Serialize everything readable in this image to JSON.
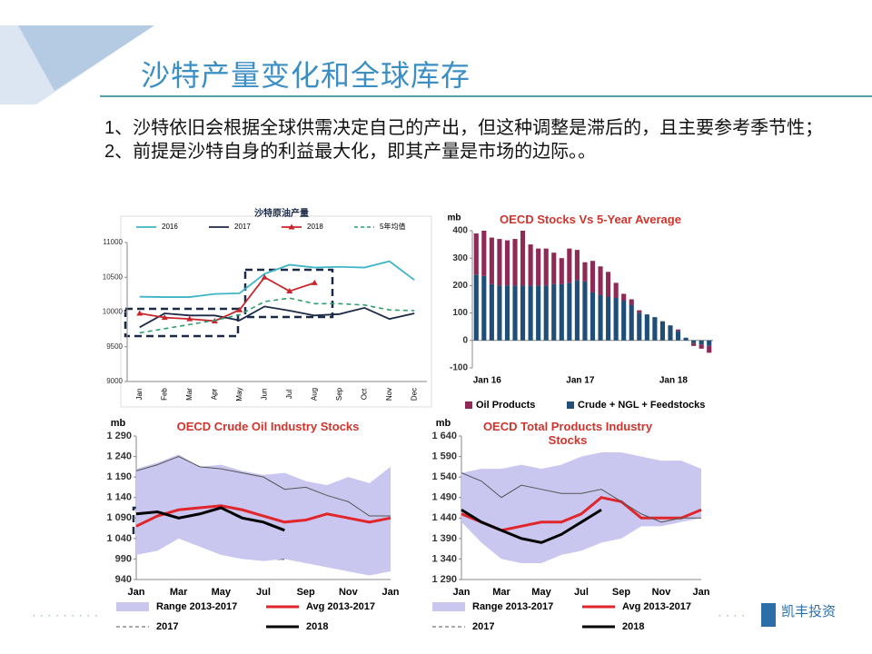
{
  "title": "沙特产量变化和全球库存",
  "bullets": [
    "1、沙特依旧会根据全球供需决定自己的产出，但这种调整是滞后的，且主要参考季节性；",
    "2、前提是沙特自身的利益最大化，即其产量是市场的边际。。"
  ],
  "logo": "凯丰投资",
  "chart_data": [
    {
      "type": "line",
      "title": "沙特原油产量",
      "categories": [
        "Jan",
        "Feb",
        "Mar",
        "Apr",
        "May",
        "Jun",
        "Jul",
        "Aug",
        "Sep",
        "Oct",
        "Nov",
        "Dec"
      ],
      "series": [
        {
          "name": "2016",
          "color": "#3fb5c8",
          "line_style": "solid",
          "values": [
            10220,
            10215,
            10215,
            10260,
            10270,
            10550,
            10680,
            10640,
            10650,
            10640,
            10730,
            10460
          ]
        },
        {
          "name": "2017",
          "color": "#1c2a48",
          "line_style": "solid",
          "values": [
            9780,
            9980,
            9950,
            9950,
            9880,
            10080,
            10020,
            9950,
            9970,
            10060,
            9900,
            9980
          ]
        },
        {
          "name": "2018",
          "color": "#c8262c",
          "line_style": "solid",
          "marker": "triangle",
          "values": [
            9980,
            9920,
            9900,
            9870,
            10030,
            10500,
            10300,
            10420,
            null,
            null,
            null,
            null
          ]
        },
        {
          "name": "5年均值",
          "color": "#2e9e6e",
          "line_style": "dashed",
          "values": [
            9700,
            9760,
            9820,
            9880,
            9960,
            10150,
            10200,
            10120,
            10120,
            10100,
            10030,
            10020
          ]
        }
      ],
      "ylim": [
        9000,
        11000
      ],
      "yticks": [
        9000,
        9500,
        10000,
        10500,
        11000
      ],
      "grid": false
    },
    {
      "type": "stacked_bar",
      "title": "OECD Stocks Vs 5-Year Average",
      "y_label": "mb",
      "categories": [
        "Jan 16",
        null,
        null,
        null,
        null,
        null,
        null,
        null,
        null,
        null,
        null,
        null,
        "Jan 17",
        null,
        null,
        null,
        null,
        null,
        null,
        null,
        null,
        null,
        null,
        null,
        "Jan 18",
        null,
        null,
        null,
        null,
        null,
        null
      ],
      "series": [
        {
          "name": "Crude + NGL + Feedstocks",
          "color": "#1f4e79",
          "values": [
            240,
            235,
            205,
            200,
            200,
            200,
            200,
            200,
            200,
            200,
            205,
            205,
            210,
            220,
            215,
            175,
            165,
            160,
            155,
            145,
            130,
            100,
            95,
            85,
            70,
            55,
            35,
            10,
            -10,
            -15,
            -20
          ]
        },
        {
          "name": "Oil Products",
          "color": "#8e2a55",
          "values": [
            150,
            165,
            170,
            170,
            165,
            170,
            200,
            150,
            135,
            135,
            115,
            95,
            125,
            110,
            70,
            115,
            105,
            90,
            55,
            25,
            20,
            10,
            0,
            0,
            0,
            0,
            5,
            0,
            -10,
            -15,
            -25
          ]
        }
      ],
      "legend_order": [
        1,
        0
      ],
      "ylim": [
        -100,
        400
      ],
      "yticks": [
        -100,
        0,
        100,
        200,
        300,
        400
      ],
      "grid": false
    },
    {
      "type": "line",
      "title": "OECD Crude Oil Industry Stocks",
      "y_label": "mb",
      "categories": [
        "Jan",
        null,
        "Mar",
        null,
        "May",
        null,
        "Jul",
        null,
        "Sep",
        null,
        "Nov",
        null,
        "Jan"
      ],
      "series": [
        {
          "name": "Range 2013-2017",
          "color": "#c9c6ef",
          "line_style": "band",
          "values": [
            1210,
            1225,
            1245,
            1215,
            1220,
            1205,
            1195,
            1200,
            1180,
            1170,
            1190,
            1175,
            1215
          ],
          "low": [
            1000,
            1010,
            1040,
            1020,
            1000,
            990,
            985,
            990,
            980,
            970,
            960,
            950,
            960
          ]
        },
        {
          "name": "Avg 2013-2017",
          "color": "#e0262b",
          "line_style": "thick",
          "values": [
            1070,
            1095,
            1110,
            1115,
            1120,
            1110,
            1095,
            1080,
            1085,
            1100,
            1090,
            1080,
            1090
          ]
        },
        {
          "name": "2017",
          "color": "#555555",
          "line_style": "thin",
          "values": [
            1205,
            1220,
            1240,
            1215,
            1210,
            1200,
            1190,
            1160,
            1165,
            1145,
            1130,
            1095,
            1095
          ]
        },
        {
          "name": "2018",
          "color": "#000000",
          "line_style": "thick",
          "values": [
            1100,
            1105,
            1090,
            1100,
            1115,
            1090,
            1080,
            1060,
            null,
            null,
            null,
            null,
            null
          ]
        }
      ],
      "ylim": [
        940,
        1290
      ],
      "yticks": [
        940,
        990,
        {
          "value": 1040,
          "label": "1 040"
        },
        {
          "value": 1090,
          "label": "1 090"
        },
        {
          "value": 1140,
          "label": "1 140"
        },
        {
          "value": 1190,
          "label": "1 190"
        },
        {
          "value": 1240,
          "label": "1 240"
        },
        {
          "value": 1290,
          "label": "1 290"
        }
      ],
      "grid": false
    },
    {
      "type": "line",
      "title": "OECD Total Products Industry Stocks",
      "y_label": "mb",
      "categories": [
        "Jan",
        null,
        "Mar",
        null,
        "May",
        null,
        "Jul",
        null,
        "Sep",
        null,
        "Nov",
        null,
        "Jan"
      ],
      "series": [
        {
          "name": "Range 2013-2017",
          "color": "#c9c6ef",
          "line_style": "band",
          "values": [
            1550,
            1560,
            1560,
            1570,
            1560,
            1570,
            1590,
            1600,
            1600,
            1590,
            1580,
            1580,
            1560
          ],
          "low": [
            1430,
            1380,
            1340,
            1330,
            1330,
            1350,
            1360,
            1380,
            1390,
            1420,
            1420,
            1430,
            1440
          ]
        },
        {
          "name": "Avg 2013-2017",
          "color": "#e0262b",
          "line_style": "thick",
          "values": [
            1450,
            1430,
            1410,
            1420,
            1430,
            1430,
            1450,
            1490,
            1480,
            1440,
            1440,
            1440,
            1460
          ]
        },
        {
          "name": "2017",
          "color": "#555555",
          "line_style": "thin",
          "values": [
            1550,
            1530,
            1490,
            1520,
            1510,
            1500,
            1500,
            1510,
            1480,
            1450,
            1430,
            1440,
            1440
          ]
        },
        {
          "name": "2018",
          "color": "#000000",
          "line_style": "thick",
          "values": [
            1460,
            1430,
            1410,
            1390,
            1380,
            1400,
            1430,
            1460,
            null,
            null,
            null,
            null,
            null
          ]
        }
      ],
      "ylim": [
        1290,
        1640
      ],
      "yticks": [
        {
          "value": 1290,
          "label": "1 290"
        },
        {
          "value": 1340,
          "label": "1 340"
        },
        {
          "value": 1390,
          "label": "1 390"
        },
        {
          "value": 1440,
          "label": "1 440"
        },
        {
          "value": 1490,
          "label": "1 490"
        },
        {
          "value": 1540,
          "label": "1 540"
        },
        {
          "value": 1590,
          "label": "1 590"
        },
        {
          "value": 1640,
          "label": "1 640"
        }
      ],
      "grid": false
    }
  ]
}
